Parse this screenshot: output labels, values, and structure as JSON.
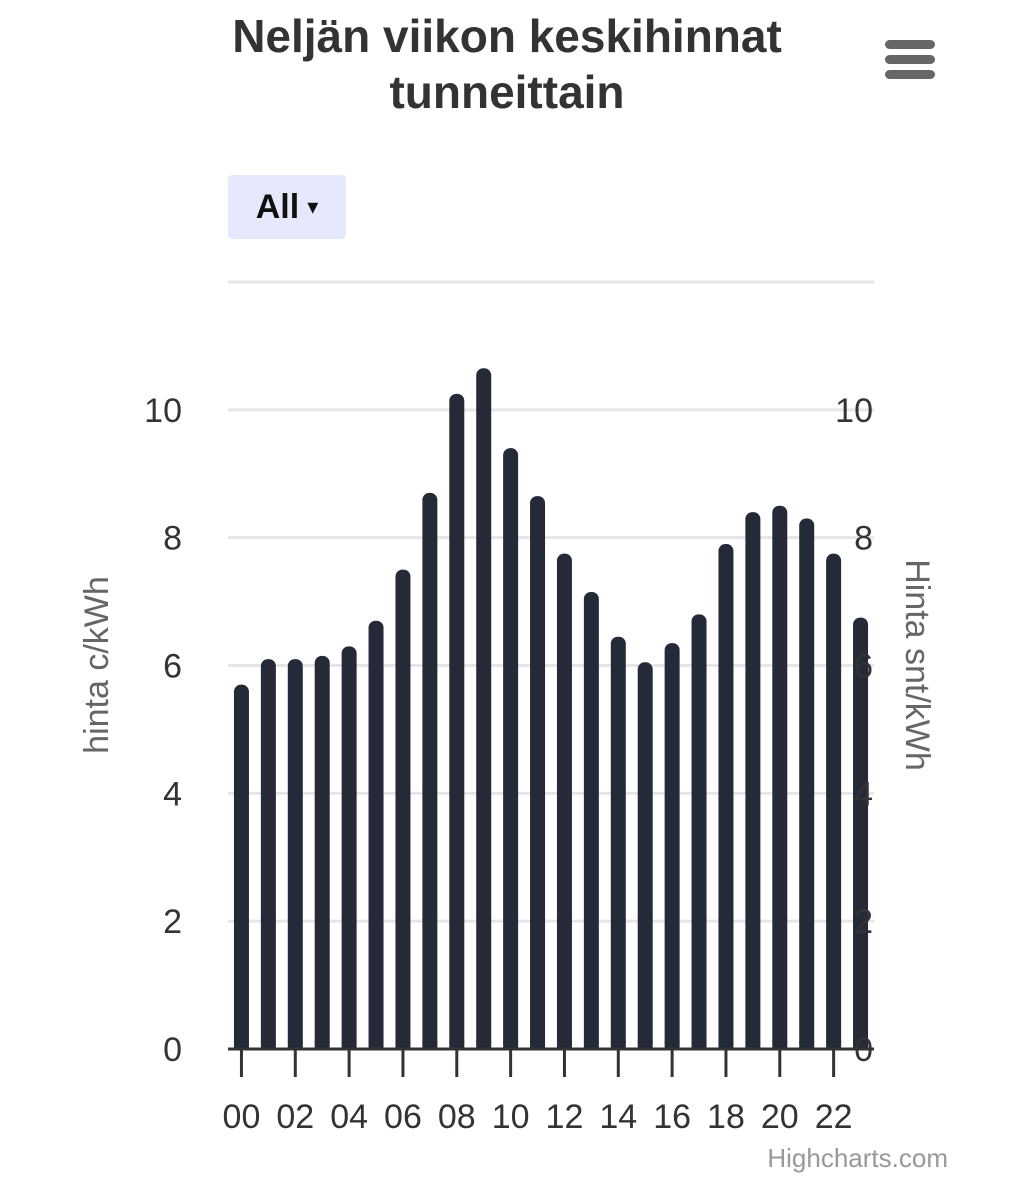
{
  "header": {
    "title_line1": "Neljän viikon keskihinnat",
    "title_line2": "tunneittain"
  },
  "controls": {
    "range_button_label": "All",
    "range_button_caret": "▾",
    "menu_icon": "hamburger-menu-icon"
  },
  "credits": "Highcharts.com",
  "colors": {
    "bar": "#252a38",
    "range_button_bg": "#e6e9fb",
    "grid": "#e6e6e6"
  },
  "chart_data": {
    "type": "bar",
    "categories": [
      "00",
      "01",
      "02",
      "03",
      "04",
      "05",
      "06",
      "07",
      "08",
      "09",
      "10",
      "11",
      "12",
      "13",
      "14",
      "15",
      "16",
      "17",
      "18",
      "19",
      "20",
      "21",
      "22",
      "23"
    ],
    "x_tick_labels": [
      "00",
      "02",
      "04",
      "06",
      "08",
      "10",
      "12",
      "14",
      "16",
      "18",
      "20",
      "22"
    ],
    "series": [
      {
        "values": [
          5.7,
          6.1,
          6.1,
          6.15,
          6.3,
          6.7,
          7.5,
          8.7,
          10.25,
          10.65,
          9.4,
          8.65,
          7.75,
          7.15,
          6.45,
          6.05,
          6.35,
          6.8,
          7.9,
          8.4,
          8.5,
          8.3,
          7.75,
          6.75
        ]
      }
    ],
    "ylabel": "hinta c/kWh",
    "ylabel_right": "Hinta snt/kWh",
    "y_ticks": [
      "0",
      "2",
      "4",
      "6",
      "8",
      "10"
    ],
    "y_ticks_right": [
      "0",
      "2",
      "4",
      "6",
      "8",
      "10"
    ],
    "ylim": [
      0,
      12
    ],
    "grid": true,
    "legend": "none"
  }
}
